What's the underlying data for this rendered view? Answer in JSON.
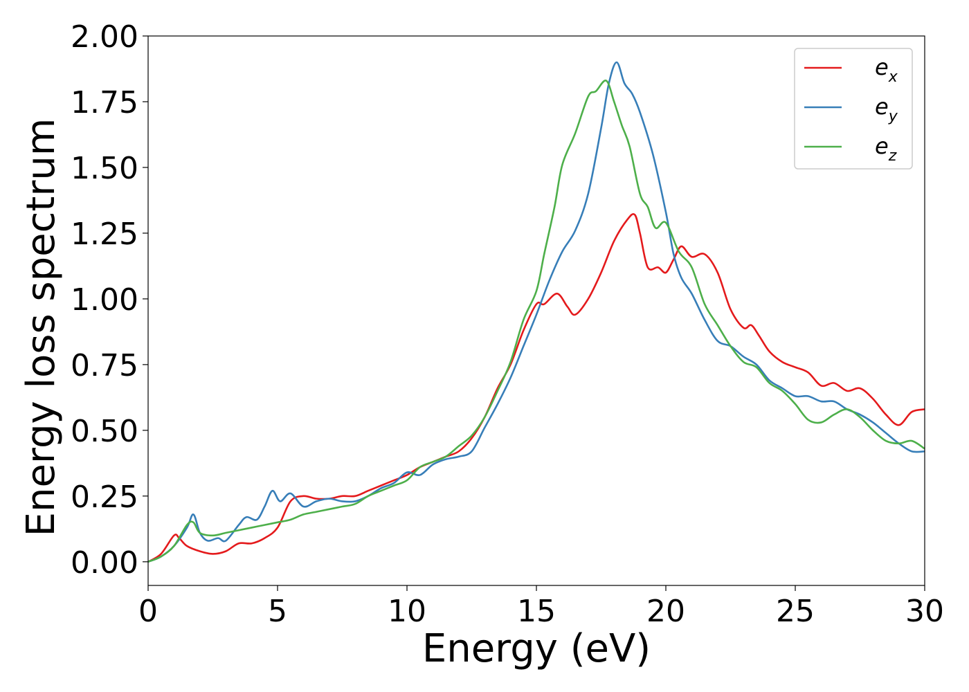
{
  "chart_data": {
    "type": "line",
    "xlabel": "Energy (eV)",
    "ylabel": "Energy loss spectrum",
    "xlim": [
      0,
      30
    ],
    "ylim": [
      -0.09,
      2.0
    ],
    "x_ticks": [
      "0",
      "5",
      "10",
      "15",
      "20",
      "25",
      "30"
    ],
    "y_ticks": [
      "0.00",
      "0.25",
      "0.50",
      "0.75",
      "1.00",
      "1.25",
      "1.50",
      "1.75",
      "2.00"
    ],
    "grid": false,
    "legend_position": "top-right",
    "series": [
      {
        "name": "e_x",
        "label_main": "e",
        "label_sub": "x",
        "color": "#e41a1c",
        "points": [
          [
            0,
            0
          ],
          [
            0.5,
            0.03
          ],
          [
            1.0,
            0.1
          ],
          [
            1.2,
            0.09
          ],
          [
            1.5,
            0.06
          ],
          [
            2.0,
            0.04
          ],
          [
            2.5,
            0.03
          ],
          [
            3.0,
            0.04
          ],
          [
            3.5,
            0.07
          ],
          [
            4.0,
            0.07
          ],
          [
            4.5,
            0.09
          ],
          [
            5.0,
            0.13
          ],
          [
            5.5,
            0.23
          ],
          [
            6.0,
            0.25
          ],
          [
            6.5,
            0.24
          ],
          [
            7.0,
            0.24
          ],
          [
            7.5,
            0.25
          ],
          [
            8.0,
            0.25
          ],
          [
            8.5,
            0.27
          ],
          [
            9.0,
            0.29
          ],
          [
            9.5,
            0.31
          ],
          [
            10.0,
            0.33
          ],
          [
            10.5,
            0.36
          ],
          [
            11.0,
            0.38
          ],
          [
            11.5,
            0.4
          ],
          [
            12.0,
            0.42
          ],
          [
            12.5,
            0.47
          ],
          [
            13.0,
            0.55
          ],
          [
            13.5,
            0.66
          ],
          [
            14.0,
            0.75
          ],
          [
            14.5,
            0.88
          ],
          [
            15.0,
            0.98
          ],
          [
            15.3,
            0.98
          ],
          [
            15.8,
            1.02
          ],
          [
            16.2,
            0.97
          ],
          [
            16.5,
            0.94
          ],
          [
            17.0,
            1.0
          ],
          [
            17.5,
            1.1
          ],
          [
            18.0,
            1.22
          ],
          [
            18.5,
            1.3
          ],
          [
            18.8,
            1.32
          ],
          [
            19.0,
            1.25
          ],
          [
            19.3,
            1.12
          ],
          [
            19.7,
            1.12
          ],
          [
            20.0,
            1.1
          ],
          [
            20.3,
            1.15
          ],
          [
            20.6,
            1.2
          ],
          [
            21.0,
            1.16
          ],
          [
            21.5,
            1.17
          ],
          [
            22.0,
            1.1
          ],
          [
            22.5,
            0.96
          ],
          [
            23.0,
            0.89
          ],
          [
            23.3,
            0.9
          ],
          [
            23.6,
            0.86
          ],
          [
            24.0,
            0.8
          ],
          [
            24.5,
            0.76
          ],
          [
            25.0,
            0.74
          ],
          [
            25.5,
            0.72
          ],
          [
            26.0,
            0.67
          ],
          [
            26.5,
            0.68
          ],
          [
            27.0,
            0.65
          ],
          [
            27.5,
            0.66
          ],
          [
            28.0,
            0.62
          ],
          [
            28.5,
            0.56
          ],
          [
            29.0,
            0.52
          ],
          [
            29.5,
            0.57
          ],
          [
            30.0,
            0.58
          ]
        ]
      },
      {
        "name": "e_y",
        "label_main": "e",
        "label_sub": "y",
        "color": "#377eb8",
        "points": [
          [
            0,
            0
          ],
          [
            0.5,
            0.02
          ],
          [
            1.0,
            0.06
          ],
          [
            1.5,
            0.13
          ],
          [
            1.75,
            0.18
          ],
          [
            2.0,
            0.11
          ],
          [
            2.3,
            0.08
          ],
          [
            2.7,
            0.09
          ],
          [
            3.0,
            0.08
          ],
          [
            3.5,
            0.14
          ],
          [
            3.8,
            0.17
          ],
          [
            4.2,
            0.16
          ],
          [
            4.5,
            0.21
          ],
          [
            4.8,
            0.27
          ],
          [
            5.1,
            0.23
          ],
          [
            5.5,
            0.26
          ],
          [
            6.0,
            0.21
          ],
          [
            6.5,
            0.23
          ],
          [
            7.0,
            0.24
          ],
          [
            7.5,
            0.23
          ],
          [
            8.0,
            0.23
          ],
          [
            8.5,
            0.25
          ],
          [
            9.0,
            0.28
          ],
          [
            9.5,
            0.3
          ],
          [
            10.0,
            0.34
          ],
          [
            10.5,
            0.33
          ],
          [
            11.0,
            0.37
          ],
          [
            11.5,
            0.39
          ],
          [
            12.0,
            0.4
          ],
          [
            12.5,
            0.42
          ],
          [
            13.0,
            0.51
          ],
          [
            13.5,
            0.6
          ],
          [
            14.0,
            0.7
          ],
          [
            14.5,
            0.82
          ],
          [
            15.0,
            0.94
          ],
          [
            15.5,
            1.07
          ],
          [
            16.0,
            1.18
          ],
          [
            16.5,
            1.26
          ],
          [
            17.0,
            1.4
          ],
          [
            17.5,
            1.65
          ],
          [
            17.8,
            1.82
          ],
          [
            18.1,
            1.9
          ],
          [
            18.4,
            1.82
          ],
          [
            18.7,
            1.78
          ],
          [
            19.0,
            1.71
          ],
          [
            19.5,
            1.55
          ],
          [
            20.0,
            1.33
          ],
          [
            20.3,
            1.17
          ],
          [
            20.6,
            1.08
          ],
          [
            21.0,
            1.02
          ],
          [
            21.5,
            0.92
          ],
          [
            22.0,
            0.84
          ],
          [
            22.5,
            0.82
          ],
          [
            23.0,
            0.78
          ],
          [
            23.5,
            0.75
          ],
          [
            24.0,
            0.69
          ],
          [
            24.5,
            0.66
          ],
          [
            25.0,
            0.63
          ],
          [
            25.5,
            0.63
          ],
          [
            26.0,
            0.61
          ],
          [
            26.5,
            0.61
          ],
          [
            27.0,
            0.58
          ],
          [
            27.5,
            0.56
          ],
          [
            28.0,
            0.53
          ],
          [
            28.5,
            0.49
          ],
          [
            29.0,
            0.45
          ],
          [
            29.5,
            0.42
          ],
          [
            30.0,
            0.42
          ]
        ]
      },
      {
        "name": "e_z",
        "label_main": "e",
        "label_sub": "z",
        "color": "#4daf4a",
        "points": [
          [
            0,
            0
          ],
          [
            0.5,
            0.02
          ],
          [
            1.0,
            0.06
          ],
          [
            1.5,
            0.14
          ],
          [
            1.75,
            0.15
          ],
          [
            2.0,
            0.11
          ],
          [
            2.5,
            0.1
          ],
          [
            3.0,
            0.11
          ],
          [
            3.5,
            0.12
          ],
          [
            4.0,
            0.13
          ],
          [
            4.5,
            0.14
          ],
          [
            5.0,
            0.15
          ],
          [
            5.5,
            0.16
          ],
          [
            6.0,
            0.18
          ],
          [
            6.5,
            0.19
          ],
          [
            7.0,
            0.2
          ],
          [
            7.5,
            0.21
          ],
          [
            8.0,
            0.22
          ],
          [
            8.5,
            0.25
          ],
          [
            9.0,
            0.27
          ],
          [
            9.5,
            0.29
          ],
          [
            10.0,
            0.31
          ],
          [
            10.5,
            0.36
          ],
          [
            11.0,
            0.38
          ],
          [
            11.5,
            0.4
          ],
          [
            12.0,
            0.44
          ],
          [
            12.5,
            0.48
          ],
          [
            13.0,
            0.55
          ],
          [
            13.5,
            0.65
          ],
          [
            14.0,
            0.76
          ],
          [
            14.5,
            0.92
          ],
          [
            15.0,
            1.03
          ],
          [
            15.3,
            1.17
          ],
          [
            15.7,
            1.35
          ],
          [
            16.0,
            1.51
          ],
          [
            16.5,
            1.63
          ],
          [
            17.0,
            1.77
          ],
          [
            17.3,
            1.79
          ],
          [
            17.7,
            1.83
          ],
          [
            18.0,
            1.75
          ],
          [
            18.3,
            1.66
          ],
          [
            18.6,
            1.58
          ],
          [
            19.0,
            1.4
          ],
          [
            19.3,
            1.35
          ],
          [
            19.6,
            1.27
          ],
          [
            20.0,
            1.29
          ],
          [
            20.5,
            1.18
          ],
          [
            21.0,
            1.12
          ],
          [
            21.5,
            0.98
          ],
          [
            22.0,
            0.9
          ],
          [
            22.5,
            0.82
          ],
          [
            23.0,
            0.76
          ],
          [
            23.5,
            0.74
          ],
          [
            24.0,
            0.68
          ],
          [
            24.5,
            0.65
          ],
          [
            25.0,
            0.6
          ],
          [
            25.5,
            0.54
          ],
          [
            26.0,
            0.53
          ],
          [
            26.5,
            0.56
          ],
          [
            27.0,
            0.58
          ],
          [
            27.5,
            0.55
          ],
          [
            28.0,
            0.5
          ],
          [
            28.5,
            0.46
          ],
          [
            29.0,
            0.45
          ],
          [
            29.5,
            0.46
          ],
          [
            30.0,
            0.43
          ]
        ]
      }
    ]
  }
}
